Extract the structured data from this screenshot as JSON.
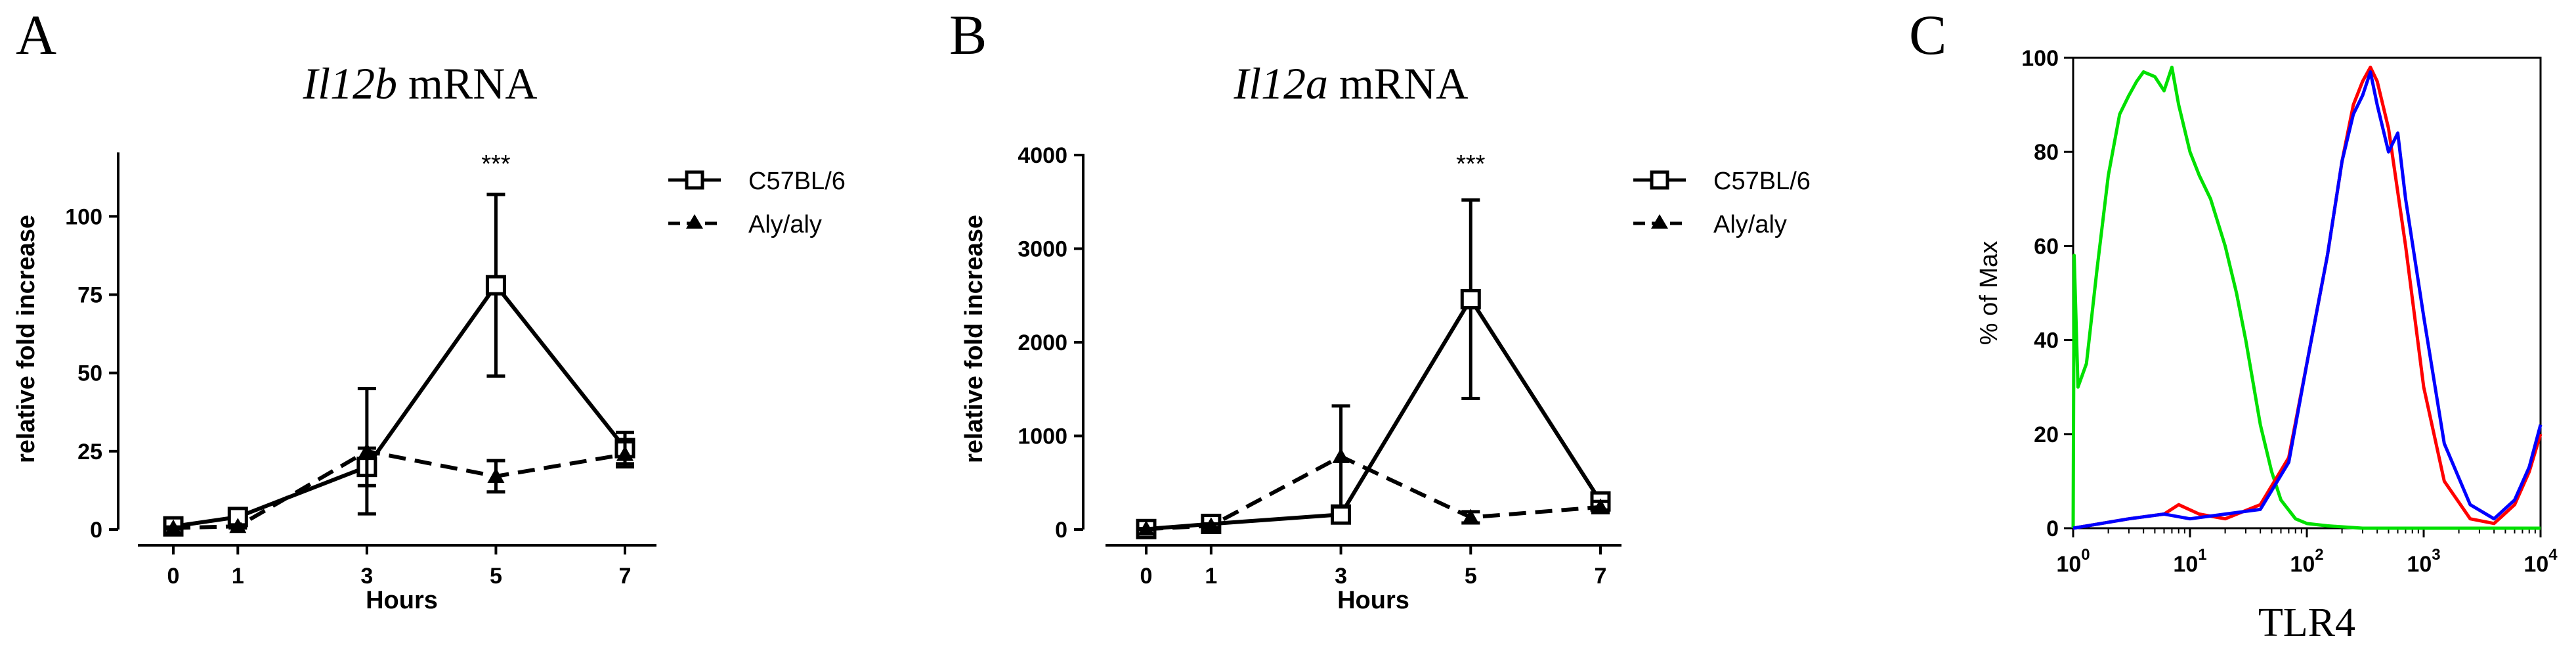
{
  "chart_data": [
    {
      "panel": "A",
      "type": "line",
      "title_italic": "Il12b",
      "title_rest": " mRNA",
      "xlabel": "Hours",
      "ylabel": "relative fold increase",
      "x": [
        0,
        1,
        3,
        5,
        7
      ],
      "ylim": [
        0,
        120
      ],
      "yticks": [
        0,
        25,
        50,
        75,
        100
      ],
      "annotation": {
        "text": "***",
        "x": 5
      },
      "series": [
        {
          "name": "C57BL/6",
          "style": "solid",
          "marker": "square",
          "values": [
            1,
            4,
            20,
            78,
            26
          ],
          "err": [
            0.5,
            1.5,
            6,
            29,
            5
          ]
        },
        {
          "name": "Aly/aly",
          "style": "dashed",
          "marker": "triangle",
          "values": [
            0.5,
            1,
            25,
            17,
            24
          ],
          "err": [
            0.3,
            0.5,
            20,
            5,
            4
          ]
        }
      ]
    },
    {
      "panel": "B",
      "type": "line",
      "title_italic": "Il12a",
      "title_rest": " mRNA",
      "xlabel": "Hours",
      "ylabel": "relative fold increase",
      "x": [
        0,
        1,
        3,
        5,
        7
      ],
      "ylim": [
        0,
        4000
      ],
      "yticks": [
        0,
        1000,
        2000,
        3000,
        4000
      ],
      "annotation": {
        "text": "***",
        "x": 5
      },
      "series": [
        {
          "name": "C57BL/6",
          "style": "solid",
          "marker": "square",
          "values": [
            5,
            60,
            160,
            2460,
            300
          ],
          "err": [
            5,
            20,
            50,
            1060,
            80
          ]
        },
        {
          "name": "Aly/aly",
          "style": "dashed",
          "marker": "triangle",
          "values": [
            5,
            40,
            780,
            130,
            240
          ],
          "err": [
            5,
            20,
            540,
            60,
            60
          ]
        }
      ]
    },
    {
      "panel": "C",
      "type": "line",
      "xlabel": "TLR4",
      "ylabel": "% of Max",
      "xscale": "log",
      "xlim": [
        1,
        10000
      ],
      "xticks": [
        {
          "base": "10",
          "exp": "0"
        },
        {
          "base": "10",
          "exp": "1"
        },
        {
          "base": "10",
          "exp": "2"
        },
        {
          "base": "10",
          "exp": "3"
        },
        {
          "base": "10",
          "exp": "4"
        }
      ],
      "ylim": [
        0,
        100
      ],
      "yticks": [
        0,
        20,
        40,
        60,
        80,
        100
      ],
      "series": [
        {
          "color": "#00e000",
          "x": [
            1,
            1.02,
            1.1,
            1.3,
            1.6,
            2,
            2.5,
            3,
            3.5,
            4,
            5,
            6,
            7,
            8,
            10,
            12,
            15,
            20,
            25,
            30,
            40,
            50,
            60,
            80,
            100,
            150,
            300,
            1000,
            10000
          ],
          "y": [
            0,
            58,
            30,
            35,
            55,
            75,
            88,
            92,
            95,
            97,
            96,
            93,
            98,
            90,
            80,
            75,
            70,
            60,
            50,
            40,
            22,
            12,
            6,
            2,
            1,
            0.5,
            0,
            0,
            0
          ]
        },
        {
          "color": "#ff0000",
          "x": [
            1,
            3,
            6,
            8,
            12,
            20,
            40,
            70,
            100,
            150,
            200,
            250,
            300,
            350,
            400,
            500,
            700,
            1000,
            1500,
            2500,
            4000,
            6000,
            8000,
            10000
          ],
          "y": [
            0,
            2,
            3,
            5,
            3,
            2,
            5,
            15,
            35,
            58,
            78,
            90,
            95,
            98,
            95,
            85,
            60,
            30,
            10,
            2,
            1,
            5,
            12,
            20
          ]
        },
        {
          "color": "#0000ff",
          "x": [
            1,
            3,
            6,
            10,
            20,
            40,
            70,
            100,
            150,
            200,
            250,
            300,
            350,
            400,
            500,
            600,
            700,
            1000,
            1500,
            2500,
            4000,
            6000,
            8000,
            10000
          ],
          "y": [
            0,
            2,
            3,
            2,
            3,
            4,
            14,
            35,
            58,
            78,
            88,
            92,
            97,
            90,
            80,
            84,
            70,
            45,
            18,
            5,
            2,
            6,
            13,
            22
          ]
        }
      ]
    }
  ]
}
